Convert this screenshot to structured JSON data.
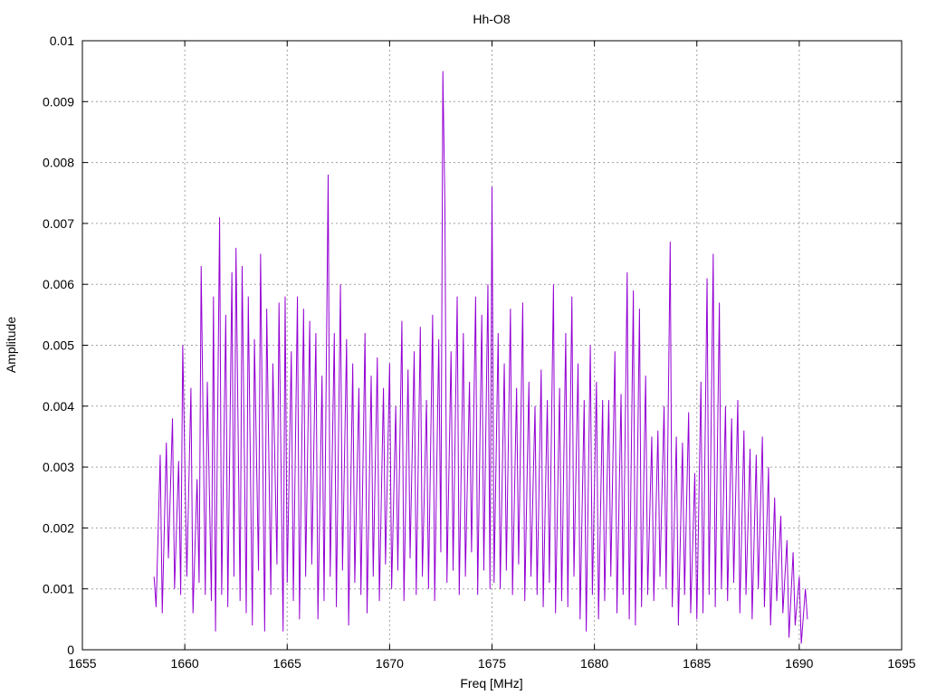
{
  "chart_data": {
    "type": "line",
    "title": "Hh-O8",
    "xlabel": "Freq [MHz]",
    "ylabel": "Amplitude",
    "xlim": [
      1655,
      1695
    ],
    "ylim": [
      0,
      0.01
    ],
    "x_ticks": [
      1655,
      1660,
      1665,
      1670,
      1675,
      1680,
      1685,
      1690,
      1695
    ],
    "x_tick_labels": [
      "1655",
      "1660",
      "1665",
      "1670",
      "1675",
      "1680",
      "1685",
      "1690",
      "1695"
    ],
    "y_ticks": [
      0,
      0.001,
      0.002,
      0.003,
      0.004,
      0.005,
      0.006,
      0.007,
      0.008,
      0.009,
      0.01
    ],
    "y_tick_labels": [
      "0",
      "0.001",
      "0.002",
      "0.003",
      "0.004",
      "0.005",
      "0.006",
      "0.007",
      "0.008",
      "0.009",
      "0.01"
    ],
    "grid": true,
    "legend": "none",
    "series_color": "#9400D3",
    "series": [
      {
        "name": "",
        "x": [
          1658.5,
          1658.6,
          1658.8,
          1658.9,
          1659.1,
          1659.2,
          1659.4,
          1659.5,
          1659.7,
          1659.8,
          1659.9,
          1660.1,
          1660.3,
          1660.4,
          1660.6,
          1660.7,
          1660.8,
          1661.0,
          1661.1,
          1661.3,
          1661.4,
          1661.5,
          1661.7,
          1661.8,
          1662.0,
          1662.1,
          1662.3,
          1662.4,
          1662.5,
          1662.7,
          1662.8,
          1663.0,
          1663.1,
          1663.3,
          1663.4,
          1663.6,
          1663.7,
          1663.9,
          1664.0,
          1664.2,
          1664.3,
          1664.5,
          1664.6,
          1664.8,
          1664.9,
          1665.0,
          1665.2,
          1665.3,
          1665.5,
          1665.6,
          1665.8,
          1665.9,
          1666.1,
          1666.2,
          1666.4,
          1666.5,
          1666.7,
          1666.8,
          1667.0,
          1667.1,
          1667.3,
          1667.4,
          1667.6,
          1667.7,
          1667.9,
          1668.0,
          1668.2,
          1668.3,
          1668.5,
          1668.6,
          1668.8,
          1668.9,
          1669.1,
          1669.2,
          1669.4,
          1669.5,
          1669.7,
          1669.8,
          1670.0,
          1670.1,
          1670.3,
          1670.4,
          1670.6,
          1670.7,
          1670.9,
          1671.0,
          1671.2,
          1671.3,
          1671.5,
          1671.6,
          1671.8,
          1671.9,
          1672.1,
          1672.2,
          1672.4,
          1672.5,
          1672.6,
          1672.7,
          1672.8,
          1673.0,
          1673.1,
          1673.3,
          1673.4,
          1673.6,
          1673.7,
          1673.9,
          1674.0,
          1674.2,
          1674.3,
          1674.5,
          1674.6,
          1674.8,
          1674.9,
          1675.0,
          1675.1,
          1675.3,
          1675.4,
          1675.6,
          1675.7,
          1675.9,
          1676.0,
          1676.2,
          1676.3,
          1676.5,
          1676.6,
          1676.8,
          1676.9,
          1677.1,
          1677.2,
          1677.4,
          1677.5,
          1677.7,
          1677.8,
          1678.0,
          1678.1,
          1678.3,
          1678.4,
          1678.6,
          1678.7,
          1678.9,
          1679.0,
          1679.2,
          1679.3,
          1679.5,
          1679.6,
          1679.8,
          1679.9,
          1680.1,
          1680.2,
          1680.4,
          1680.5,
          1680.7,
          1680.8,
          1681.0,
          1681.1,
          1681.3,
          1681.4,
          1681.6,
          1681.7,
          1681.9,
          1682.0,
          1682.2,
          1682.3,
          1682.5,
          1682.6,
          1682.8,
          1682.9,
          1683.1,
          1683.2,
          1683.4,
          1683.5,
          1683.7,
          1683.8,
          1684.0,
          1684.1,
          1684.3,
          1684.4,
          1684.6,
          1684.7,
          1684.9,
          1685.0,
          1685.2,
          1685.3,
          1685.5,
          1685.6,
          1685.8,
          1685.9,
          1686.1,
          1686.2,
          1686.4,
          1686.5,
          1686.7,
          1686.8,
          1687.0,
          1687.1,
          1687.3,
          1687.4,
          1687.6,
          1687.7,
          1687.9,
          1688.0,
          1688.2,
          1688.3,
          1688.5,
          1688.6,
          1688.8,
          1688.9,
          1689.1,
          1689.2,
          1689.4,
          1689.5,
          1689.7,
          1689.8,
          1690.0,
          1690.1,
          1690.3,
          1690.4
        ],
        "y": [
          0.0012,
          0.0007,
          0.0032,
          0.0006,
          0.0034,
          0.0015,
          0.0038,
          0.001,
          0.0031,
          0.0009,
          0.005,
          0.0012,
          0.0043,
          0.0006,
          0.0028,
          0.0011,
          0.0063,
          0.0009,
          0.0044,
          0.0008,
          0.0058,
          0.0003,
          0.0071,
          0.0009,
          0.0055,
          0.0007,
          0.0062,
          0.0012,
          0.0066,
          0.0008,
          0.0063,
          0.0006,
          0.0058,
          0.0004,
          0.0051,
          0.0013,
          0.0065,
          0.0003,
          0.0056,
          0.0009,
          0.0047,
          0.0014,
          0.0057,
          0.0003,
          0.0058,
          0.0011,
          0.0049,
          0.0008,
          0.0058,
          0.0005,
          0.0056,
          0.0012,
          0.0054,
          0.0014,
          0.0052,
          0.0005,
          0.0045,
          0.0008,
          0.0078,
          0.0012,
          0.0052,
          0.0007,
          0.006,
          0.0013,
          0.0051,
          0.0004,
          0.0047,
          0.0011,
          0.0043,
          0.0009,
          0.0052,
          0.0006,
          0.0045,
          0.0012,
          0.0048,
          0.0008,
          0.0043,
          0.0014,
          0.0047,
          0.001,
          0.004,
          0.0013,
          0.0054,
          0.0008,
          0.0046,
          0.0015,
          0.0049,
          0.0009,
          0.0053,
          0.0012,
          0.0041,
          0.001,
          0.0055,
          0.0008,
          0.0051,
          0.0016,
          0.0095,
          0.0073,
          0.0011,
          0.0049,
          0.0013,
          0.0058,
          0.0009,
          0.0052,
          0.0012,
          0.0044,
          0.0016,
          0.0058,
          0.0009,
          0.0055,
          0.0013,
          0.006,
          0.001,
          0.0076,
          0.0011,
          0.0052,
          0.001,
          0.0047,
          0.0013,
          0.0056,
          0.0009,
          0.0043,
          0.0014,
          0.0057,
          0.0008,
          0.0044,
          0.0012,
          0.004,
          0.0009,
          0.0046,
          0.0007,
          0.0041,
          0.0011,
          0.006,
          0.0006,
          0.0043,
          0.0008,
          0.0052,
          0.0007,
          0.0058,
          0.0012,
          0.0047,
          0.0005,
          0.0041,
          0.0003,
          0.005,
          0.0009,
          0.0044,
          0.0005,
          0.0041,
          0.0008,
          0.0041,
          0.0012,
          0.0049,
          0.0006,
          0.0042,
          0.0009,
          0.0062,
          0.0005,
          0.0059,
          0.0004,
          0.0056,
          0.0007,
          0.0045,
          0.0009,
          0.0035,
          0.0008,
          0.0036,
          0.0012,
          0.004,
          0.001,
          0.0067,
          0.0007,
          0.0035,
          0.0004,
          0.0034,
          0.0009,
          0.0039,
          0.0006,
          0.0029,
          0.0005,
          0.0044,
          0.0006,
          0.0061,
          0.0009,
          0.0065,
          0.0007,
          0.0057,
          0.001,
          0.004,
          0.0008,
          0.0038,
          0.0011,
          0.0041,
          0.0006,
          0.0036,
          0.0009,
          0.0033,
          0.0005,
          0.0032,
          0.001,
          0.0035,
          0.0007,
          0.003,
          0.0004,
          0.0025,
          0.0008,
          0.0022,
          0.0006,
          0.0018,
          0.0002,
          0.0016,
          0.0004,
          0.0012,
          0.0001,
          0.001,
          0.0005
        ]
      }
    ]
  }
}
